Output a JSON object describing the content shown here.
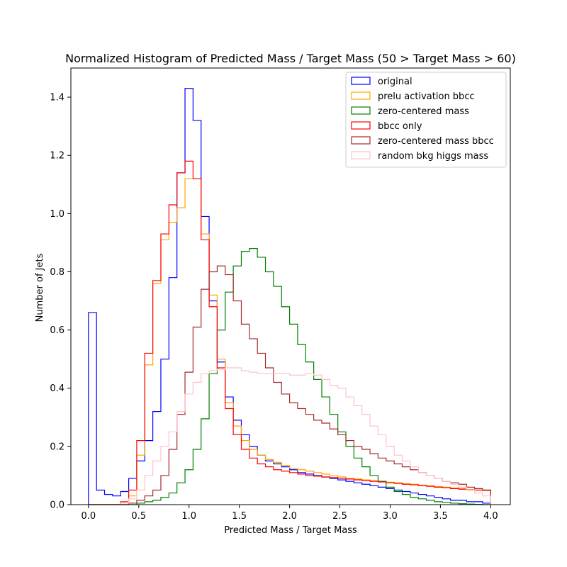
{
  "chart_data": {
    "type": "histogram",
    "title": "Normalized Histogram of Predicted Mass / Target Mass (50 > Target Mass > 60)",
    "xlabel": "Predicted Mass / Target Mass",
    "ylabel": "Number of Jets",
    "xlim": [
      -0.175,
      4.195
    ],
    "ylim": [
      0,
      1.5
    ],
    "xticks": [
      0.0,
      0.5,
      1.0,
      1.5,
      2.0,
      2.5,
      3.0,
      3.5,
      4.0
    ],
    "yticks": [
      0.0,
      0.2,
      0.4,
      0.6,
      0.8,
      1.0,
      1.2,
      1.4
    ],
    "bin_start": 0.0,
    "bin_width": 0.08,
    "legend_position": "top-right",
    "series": [
      {
        "name": "original",
        "color": "#0000ff",
        "values": [
          0.66,
          0.05,
          0.035,
          0.03,
          0.045,
          0.09,
          0.15,
          0.22,
          0.32,
          0.5,
          0.78,
          1.14,
          1.43,
          1.32,
          0.99,
          0.7,
          0.49,
          0.37,
          0.29,
          0.24,
          0.2,
          0.17,
          0.15,
          0.14,
          0.13,
          0.12,
          0.11,
          0.105,
          0.1,
          0.095,
          0.09,
          0.085,
          0.08,
          0.075,
          0.07,
          0.065,
          0.06,
          0.055,
          0.05,
          0.045,
          0.04,
          0.035,
          0.03,
          0.025,
          0.02,
          0.015,
          0.015,
          0.01,
          0.01,
          0.005
        ]
      },
      {
        "name": "prelu activation bbcc",
        "color": "#ffa500",
        "values": [
          0.0,
          0.0,
          0.0,
          0.0,
          0.005,
          0.03,
          0.17,
          0.48,
          0.76,
          0.91,
          0.97,
          1.02,
          1.12,
          1.12,
          0.93,
          0.72,
          0.5,
          0.35,
          0.27,
          0.22,
          0.19,
          0.17,
          0.155,
          0.145,
          0.135,
          0.125,
          0.12,
          0.115,
          0.11,
          0.105,
          0.1,
          0.095,
          0.09,
          0.088,
          0.085,
          0.082,
          0.08,
          0.077,
          0.075,
          0.072,
          0.07,
          0.067,
          0.065,
          0.062,
          0.06,
          0.057,
          0.055,
          0.052,
          0.05,
          0.048
        ]
      },
      {
        "name": "zero-centered mass",
        "color": "#008000",
        "values": [
          0.0,
          0.0,
          0.0,
          0.0,
          0.0,
          0.0,
          0.005,
          0.01,
          0.015,
          0.025,
          0.04,
          0.075,
          0.12,
          0.19,
          0.295,
          0.45,
          0.6,
          0.73,
          0.82,
          0.87,
          0.88,
          0.85,
          0.8,
          0.75,
          0.68,
          0.62,
          0.55,
          0.49,
          0.43,
          0.37,
          0.31,
          0.25,
          0.2,
          0.16,
          0.13,
          0.1,
          0.08,
          0.06,
          0.045,
          0.035,
          0.025,
          0.02,
          0.015,
          0.01,
          0.008,
          0.005,
          0.003,
          0.002,
          0.001,
          0.0
        ]
      },
      {
        "name": "bbcc only",
        "color": "#ff0000",
        "values": [
          0.0,
          0.0,
          0.0,
          0.0,
          0.01,
          0.05,
          0.22,
          0.52,
          0.77,
          0.93,
          1.03,
          1.14,
          1.18,
          1.12,
          0.91,
          0.68,
          0.47,
          0.33,
          0.24,
          0.19,
          0.16,
          0.14,
          0.13,
          0.12,
          0.115,
          0.11,
          0.105,
          0.1,
          0.098,
          0.095,
          0.093,
          0.09,
          0.088,
          0.085,
          0.083,
          0.08,
          0.078,
          0.075,
          0.073,
          0.07,
          0.068,
          0.065,
          0.063,
          0.06,
          0.058,
          0.055,
          0.053,
          0.05,
          0.05,
          0.05
        ]
      },
      {
        "name": "zero-centered mass bbcc",
        "color": "#a52a2a",
        "values": [
          0.0,
          0.0,
          0.0,
          0.0,
          0.0,
          0.005,
          0.015,
          0.03,
          0.05,
          0.1,
          0.19,
          0.31,
          0.455,
          0.61,
          0.74,
          0.8,
          0.82,
          0.79,
          0.7,
          0.62,
          0.57,
          0.52,
          0.47,
          0.42,
          0.38,
          0.35,
          0.33,
          0.31,
          0.29,
          0.28,
          0.26,
          0.24,
          0.22,
          0.2,
          0.19,
          0.175,
          0.16,
          0.15,
          0.14,
          0.13,
          0.12,
          0.11,
          0.1,
          0.09,
          0.08,
          0.075,
          0.07,
          0.06,
          0.055,
          0.05
        ]
      },
      {
        "name": "random bkg higgs mass",
        "color": "#ffc0cb",
        "values": [
          0.0,
          0.0,
          0.0,
          0.0,
          0.005,
          0.02,
          0.05,
          0.1,
          0.15,
          0.2,
          0.25,
          0.32,
          0.38,
          0.42,
          0.45,
          0.46,
          0.465,
          0.47,
          0.47,
          0.46,
          0.455,
          0.45,
          0.45,
          0.45,
          0.45,
          0.445,
          0.445,
          0.45,
          0.445,
          0.43,
          0.41,
          0.4,
          0.37,
          0.34,
          0.31,
          0.27,
          0.24,
          0.2,
          0.17,
          0.15,
          0.13,
          0.11,
          0.1,
          0.09,
          0.08,
          0.07,
          0.06,
          0.05,
          0.04,
          0.03
        ]
      }
    ]
  }
}
